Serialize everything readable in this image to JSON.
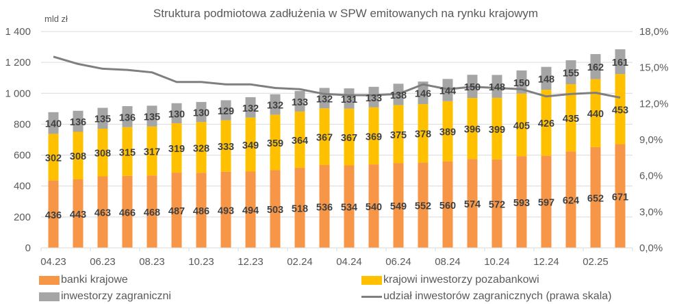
{
  "chart_data": {
    "type": "bar",
    "stacked": true,
    "title": "Struktura podmiotowa zadłużenia w SPW emitowanych na rynku krajowym",
    "ylabel": "mld zł",
    "ylim": [
      0,
      1400
    ],
    "yticks": [
      0,
      200,
      400,
      600,
      800,
      1000,
      1200,
      1400
    ],
    "ytick_labels": [
      "0",
      "200",
      "400",
      "600",
      "800",
      "1 000",
      "1 200",
      "1 400"
    ],
    "y2lim": [
      0,
      18
    ],
    "y2ticks": [
      0,
      3,
      6,
      9,
      12,
      15,
      18
    ],
    "y2tick_labels": [
      "0,0%",
      "3,0%",
      "6,0%",
      "9,0%",
      "12,0%",
      "15,0%",
      "18,0%"
    ],
    "grid": true,
    "categories": [
      "04.23",
      "05.23",
      "06.23",
      "07.23",
      "08.23",
      "09.23",
      "10.23",
      "11.23",
      "12.23",
      "01.24",
      "02.24",
      "03.24",
      "04.24",
      "05.24",
      "06.24",
      "07.24",
      "08.24",
      "09.24",
      "10.24",
      "11.24",
      "12.24",
      "01.25",
      "02.25",
      "03.25"
    ],
    "xtick_labels": [
      "04.23",
      "06.23",
      "08.23",
      "10.23",
      "12.23",
      "02.24",
      "04.24",
      "06.24",
      "08.24",
      "10.24",
      "12.24",
      "02.25"
    ],
    "series": [
      {
        "name": "banki krajowe",
        "color": "#F79646",
        "axis": "left",
        "values": [
          436,
          443,
          463,
          466,
          468,
          487,
          486,
          493,
          494,
          503,
          518,
          536,
          534,
          540,
          549,
          552,
          560,
          574,
          572,
          593,
          597,
          624,
          652,
          671
        ]
      },
      {
        "name": "krajowi inwestorzy pozabankowi",
        "color": "#FFC000",
        "axis": "left",
        "values": [
          302,
          308,
          308,
          315,
          317,
          319,
          328,
          333,
          349,
          359,
          364,
          367,
          367,
          369,
          375,
          378,
          389,
          396,
          399,
          405,
          426,
          435,
          440,
          453
        ]
      },
      {
        "name": "inwestorzy zagraniczni",
        "color": "#A5A5A5",
        "axis": "left",
        "values": [
          140,
          136,
          135,
          136,
          135,
          130,
          130,
          129,
          132,
          132,
          133,
          132,
          131,
          133,
          138,
          146,
          144,
          150,
          148,
          150,
          148,
          155,
          162,
          161
        ]
      },
      {
        "name": "udział inwestorów zagranicznych (prawa skala)",
        "type": "line",
        "color": "#7F7F7F",
        "axis": "right",
        "unit": "%",
        "values": [
          15.9,
          15.3,
          14.9,
          14.8,
          14.6,
          13.8,
          13.8,
          13.6,
          13.6,
          13.3,
          13.2,
          12.8,
          12.7,
          12.7,
          12.8,
          13.6,
          13.2,
          13.4,
          13.3,
          13.2,
          12.6,
          12.8,
          12.9,
          12.5
        ]
      }
    ],
    "legend": "bottom"
  },
  "legend_items": [
    {
      "label": "banki krajowe",
      "color": "#F79646",
      "kind": "box"
    },
    {
      "label": "krajowi inwestorzy pozabankowi",
      "color": "#FFC000",
      "kind": "box"
    },
    {
      "label": "inwestorzy zagraniczni",
      "color": "#A5A5A5",
      "kind": "box"
    },
    {
      "label": "udział inwestorów zagranicznych (prawa skala)",
      "color": "#7F7F7F",
      "kind": "line"
    }
  ]
}
